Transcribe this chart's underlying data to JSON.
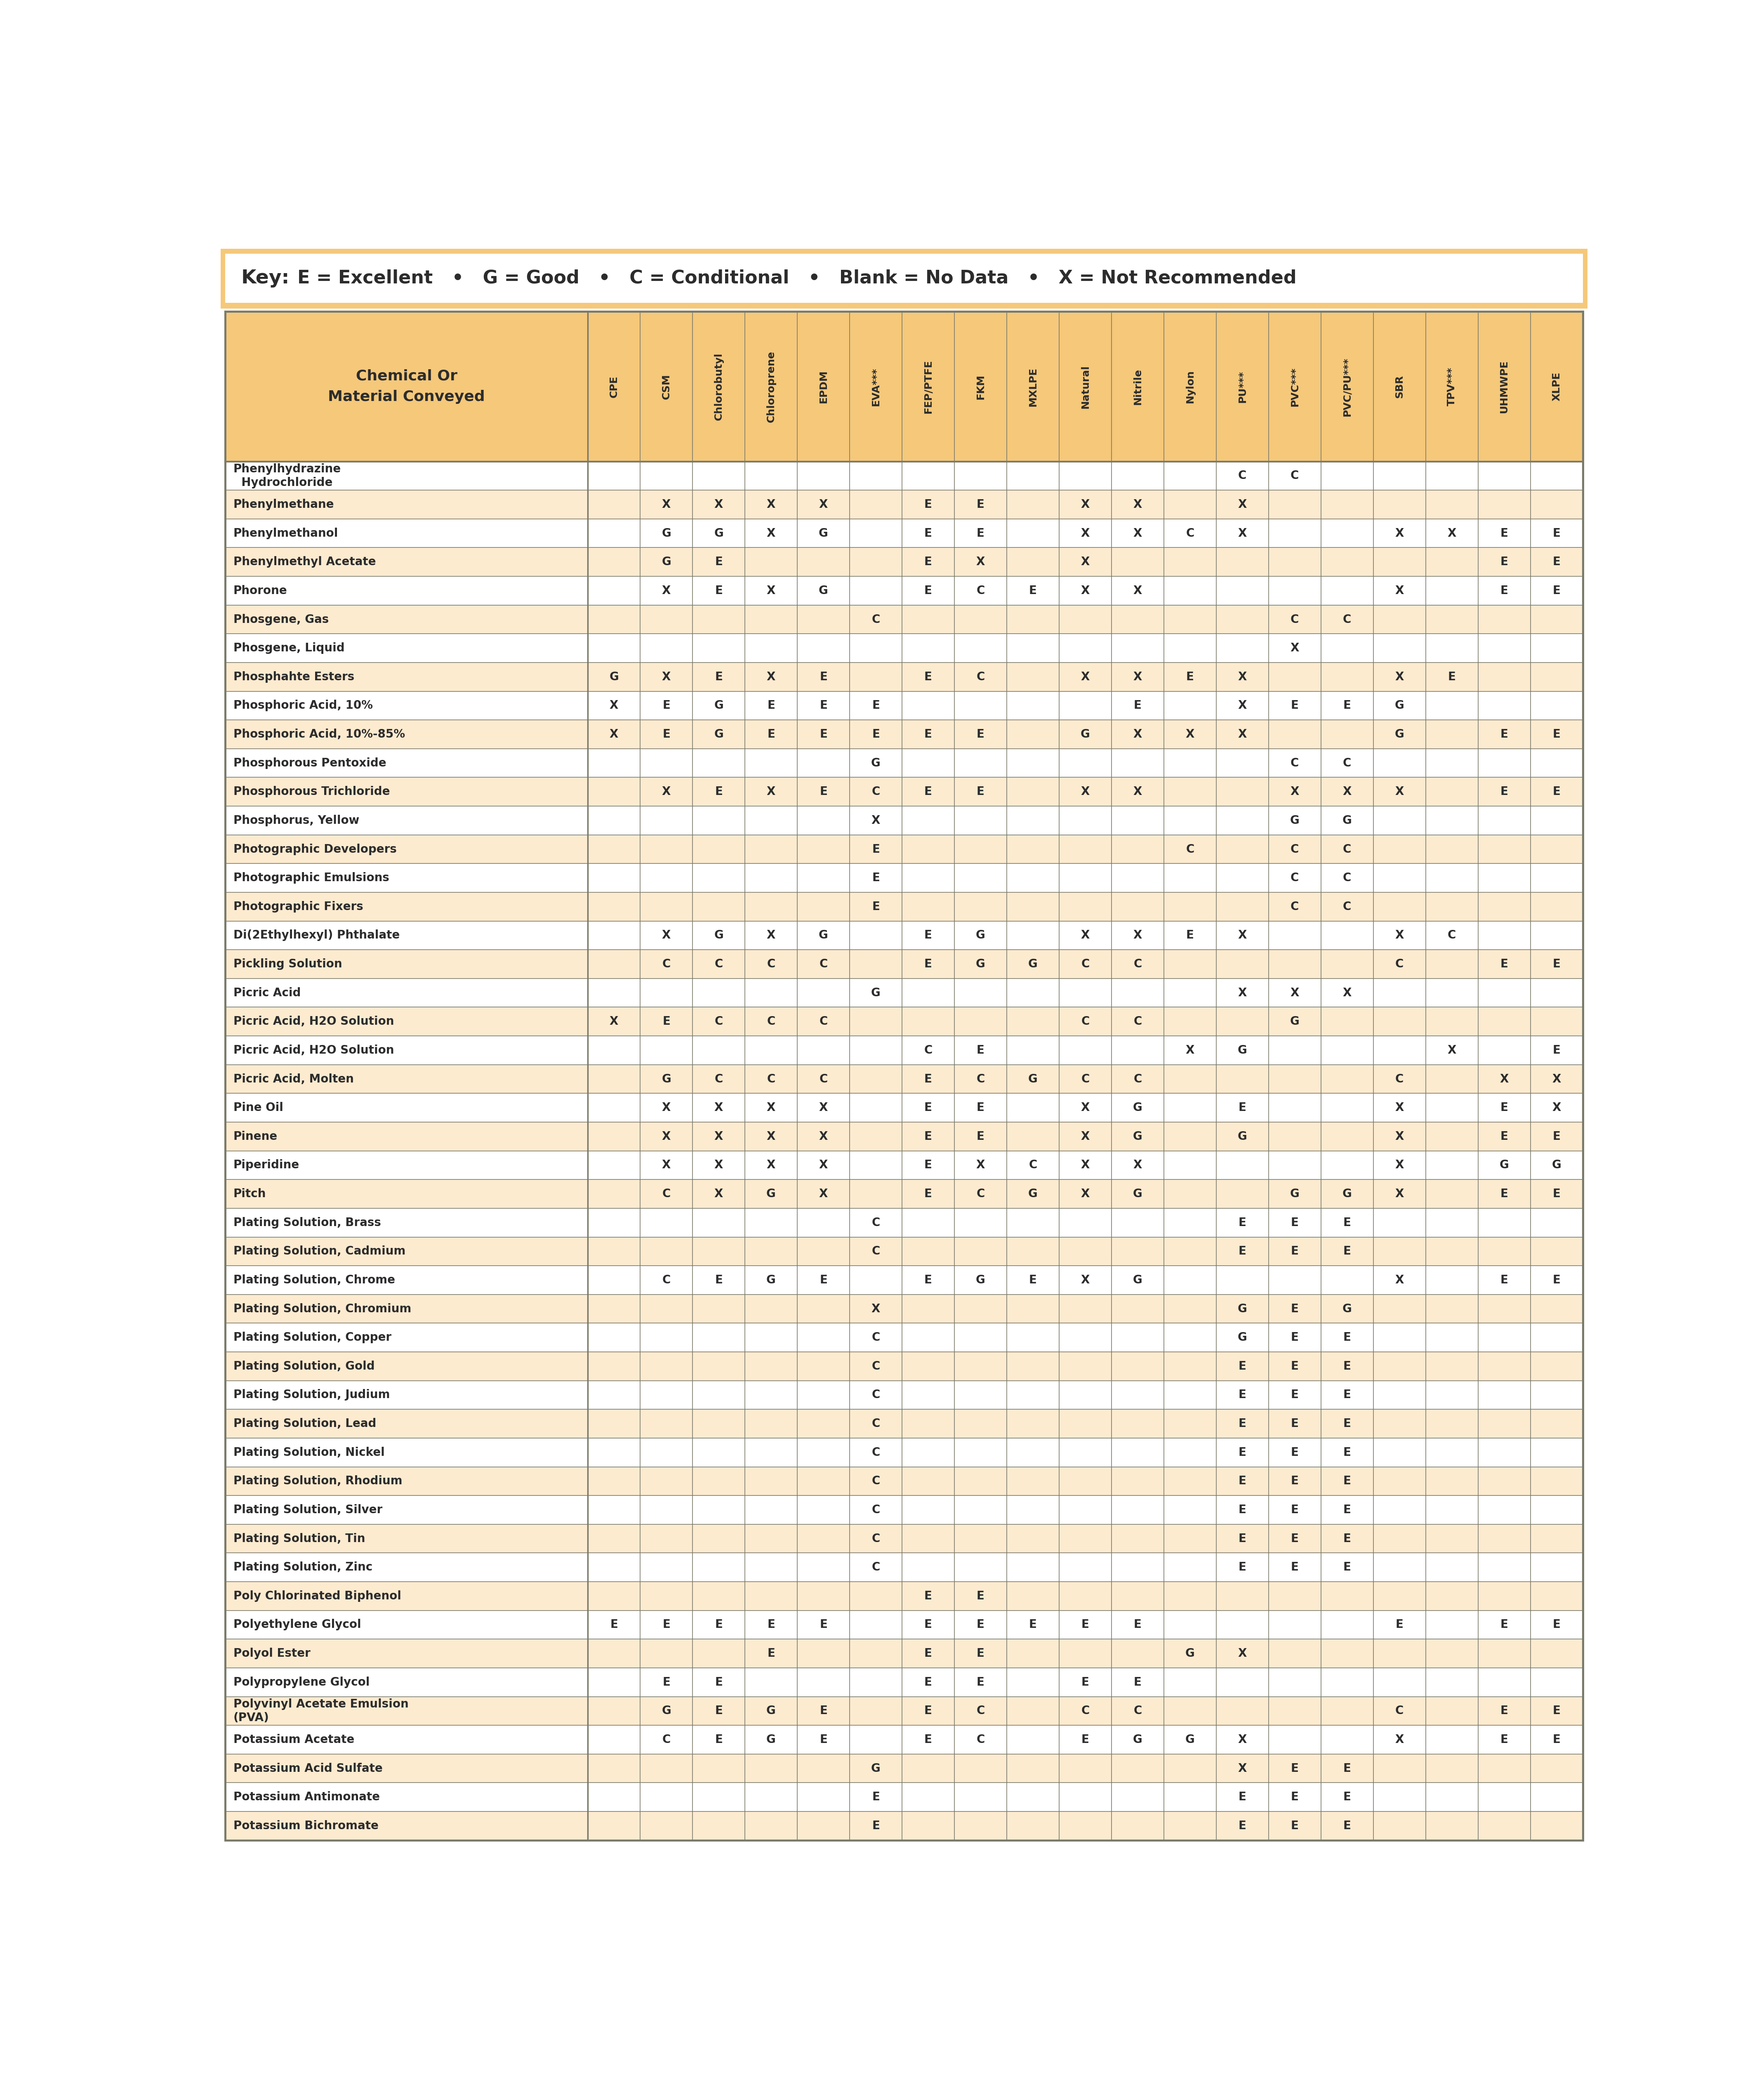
{
  "key_text_bold": "Key:",
  "key_text_rest": "  E = Excellent   •   G = Good   •   C = Conditional   •   Blank = No Data   •   X = Not Recommended",
  "header_col": "Chemical Or\nMaterial Conveyed",
  "columns": [
    "CPE",
    "CSM",
    "Chlorobutyl",
    "Chloroprene",
    "EPDM",
    "EVA***",
    "FEP/PTFE",
    "FKM",
    "MXLPE",
    "Natural",
    "Nitrile",
    "Nylon",
    "PU***",
    "PVC***",
    "PVC/PU***",
    "SBR",
    "TPV***",
    "UHMWPE",
    "XLPE"
  ],
  "rows": [
    [
      "Phenylhydrazine\n  Hydrochloride",
      "",
      "",
      "",
      "",
      "",
      "",
      "",
      "",
      "",
      "",
      "",
      "",
      "C",
      "C",
      "",
      "",
      "",
      ""
    ],
    [
      "Phenylmethane",
      "",
      "X",
      "X",
      "X",
      "X",
      "",
      "E",
      "E",
      "",
      "X",
      "X",
      "",
      "X",
      "",
      "",
      "",
      "",
      ""
    ],
    [
      "Phenylmethanol",
      "",
      "G",
      "G",
      "X",
      "G",
      "",
      "E",
      "E",
      "",
      "X",
      "X",
      "C",
      "X",
      "",
      "",
      "X",
      "X",
      "E",
      "E"
    ],
    [
      "Phenylmethyl Acetate",
      "",
      "G",
      "E",
      "",
      "",
      "",
      "E",
      "X",
      "",
      "X",
      "",
      "",
      "",
      "",
      "",
      "",
      "",
      "E",
      "E"
    ],
    [
      "Phorone",
      "",
      "X",
      "E",
      "X",
      "G",
      "",
      "E",
      "C",
      "E",
      "X",
      "X",
      "",
      "",
      "",
      "",
      "X",
      "",
      "E",
      "E"
    ],
    [
      "Phosgene, Gas",
      "",
      "",
      "",
      "",
      "",
      "C",
      "",
      "",
      "",
      "",
      "",
      "",
      "",
      "C",
      "C",
      "",
      "",
      "",
      ""
    ],
    [
      "Phosgene, Liquid",
      "",
      "",
      "",
      "",
      "",
      "",
      "",
      "",
      "",
      "",
      "",
      "",
      "",
      "X",
      "",
      "",
      "",
      "",
      ""
    ],
    [
      "Phosphahte Esters",
      "G",
      "X",
      "E",
      "X",
      "E",
      "",
      "E",
      "C",
      "",
      "X",
      "X",
      "E",
      "X",
      "",
      "",
      "X",
      "E",
      "",
      ""
    ],
    [
      "Phosphoric Acid, 10%",
      "X",
      "E",
      "G",
      "E",
      "E",
      "E",
      "",
      "",
      "",
      "",
      "E",
      "",
      "X",
      "E",
      "E",
      "G",
      "",
      "",
      ""
    ],
    [
      "Phosphoric Acid, 10%-85%",
      "X",
      "E",
      "G",
      "E",
      "E",
      "E",
      "E",
      "E",
      "",
      "G",
      "X",
      "X",
      "X",
      "",
      "",
      "G",
      "",
      "E",
      "E"
    ],
    [
      "Phosphorous Pentoxide",
      "",
      "",
      "",
      "",
      "",
      "G",
      "",
      "",
      "",
      "",
      "",
      "",
      "",
      "C",
      "C",
      "",
      "",
      "",
      ""
    ],
    [
      "Phosphorous Trichloride",
      "",
      "X",
      "E",
      "X",
      "E",
      "C",
      "E",
      "E",
      "",
      "X",
      "X",
      "",
      "",
      "X",
      "X",
      "X",
      "",
      "E",
      "E"
    ],
    [
      "Phosphorus, Yellow",
      "",
      "",
      "",
      "",
      "",
      "X",
      "",
      "",
      "",
      "",
      "",
      "",
      "",
      "G",
      "G",
      "",
      "",
      "",
      ""
    ],
    [
      "Photographic Developers",
      "",
      "",
      "",
      "",
      "",
      "E",
      "",
      "",
      "",
      "",
      "",
      "C",
      "",
      "C",
      "C",
      "",
      "",
      "",
      ""
    ],
    [
      "Photographic Emulsions",
      "",
      "",
      "",
      "",
      "",
      "E",
      "",
      "",
      "",
      "",
      "",
      "",
      "",
      "C",
      "C",
      "",
      "",
      "",
      ""
    ],
    [
      "Photographic Fixers",
      "",
      "",
      "",
      "",
      "",
      "E",
      "",
      "",
      "",
      "",
      "",
      "",
      "",
      "C",
      "C",
      "",
      "",
      "",
      ""
    ],
    [
      "Di(2Ethylhexyl) Phthalate",
      "",
      "X",
      "G",
      "X",
      "G",
      "",
      "E",
      "G",
      "",
      "X",
      "X",
      "E",
      "X",
      "",
      "",
      "X",
      "C",
      "",
      ""
    ],
    [
      "Pickling Solution",
      "",
      "C",
      "C",
      "C",
      "C",
      "",
      "E",
      "G",
      "G",
      "C",
      "C",
      "",
      "",
      "",
      "",
      "C",
      "",
      "E",
      "E"
    ],
    [
      "Picric Acid",
      "",
      "",
      "",
      "",
      "",
      "G",
      "",
      "",
      "",
      "",
      "",
      "",
      "X",
      "X",
      "X",
      "",
      "",
      "",
      ""
    ],
    [
      "Picric Acid, H2O Solution",
      "X",
      "E",
      "C",
      "C",
      "C",
      "",
      "",
      "",
      "",
      "C",
      "C",
      "",
      "",
      "G",
      "",
      "",
      "",
      "",
      ""
    ],
    [
      "Picric Acid, H2O Solution",
      "",
      "",
      "",
      "",
      "",
      "",
      "C",
      "E",
      "",
      "",
      "",
      "X",
      "G",
      "",
      "",
      "",
      "X",
      "",
      "E"
    ],
    [
      "Picric Acid, Molten",
      "",
      "G",
      "C",
      "C",
      "C",
      "",
      "E",
      "C",
      "G",
      "C",
      "C",
      "",
      "",
      "",
      "",
      "C",
      "",
      "X",
      "X"
    ],
    [
      "Pine Oil",
      "",
      "X",
      "X",
      "X",
      "X",
      "",
      "E",
      "E",
      "",
      "X",
      "G",
      "",
      "E",
      "",
      "",
      "X",
      "",
      "E",
      "X"
    ],
    [
      "Pinene",
      "",
      "X",
      "X",
      "X",
      "X",
      "",
      "E",
      "E",
      "",
      "X",
      "G",
      "",
      "G",
      "",
      "",
      "X",
      "",
      "E",
      "E"
    ],
    [
      "Piperidine",
      "",
      "X",
      "X",
      "X",
      "X",
      "",
      "E",
      "X",
      "C",
      "X",
      "X",
      "",
      "",
      "",
      "",
      "X",
      "",
      "G",
      "G"
    ],
    [
      "Pitch",
      "",
      "C",
      "X",
      "G",
      "X",
      "",
      "E",
      "C",
      "G",
      "X",
      "G",
      "",
      "",
      "G",
      "G",
      "X",
      "",
      "E",
      "E"
    ],
    [
      "Plating Solution, Brass",
      "",
      "",
      "",
      "",
      "",
      "C",
      "",
      "",
      "",
      "",
      "",
      "",
      "E",
      "E",
      "E",
      "",
      "",
      "",
      ""
    ],
    [
      "Plating Solution, Cadmium",
      "",
      "",
      "",
      "",
      "",
      "C",
      "",
      "",
      "",
      "",
      "",
      "",
      "E",
      "E",
      "E",
      "",
      "",
      "",
      ""
    ],
    [
      "Plating Solution, Chrome",
      "",
      "C",
      "E",
      "G",
      "E",
      "",
      "E",
      "G",
      "E",
      "X",
      "G",
      "",
      "",
      "",
      "",
      "X",
      "",
      "E",
      "E"
    ],
    [
      "Plating Solution, Chromium",
      "",
      "",
      "",
      "",
      "",
      "X",
      "",
      "",
      "",
      "",
      "",
      "",
      "G",
      "E",
      "G",
      "",
      "",
      "",
      ""
    ],
    [
      "Plating Solution, Copper",
      "",
      "",
      "",
      "",
      "",
      "C",
      "",
      "",
      "",
      "",
      "",
      "",
      "G",
      "E",
      "E",
      "",
      "",
      "",
      ""
    ],
    [
      "Plating Solution, Gold",
      "",
      "",
      "",
      "",
      "",
      "C",
      "",
      "",
      "",
      "",
      "",
      "",
      "E",
      "E",
      "E",
      "",
      "",
      "",
      ""
    ],
    [
      "Plating Solution, Judium",
      "",
      "",
      "",
      "",
      "",
      "C",
      "",
      "",
      "",
      "",
      "",
      "",
      "E",
      "E",
      "E",
      "",
      "",
      "",
      ""
    ],
    [
      "Plating Solution, Lead",
      "",
      "",
      "",
      "",
      "",
      "C",
      "",
      "",
      "",
      "",
      "",
      "",
      "E",
      "E",
      "E",
      "",
      "",
      "",
      ""
    ],
    [
      "Plating Solution, Nickel",
      "",
      "",
      "",
      "",
      "",
      "C",
      "",
      "",
      "",
      "",
      "",
      "",
      "E",
      "E",
      "E",
      "",
      "",
      "",
      ""
    ],
    [
      "Plating Solution, Rhodium",
      "",
      "",
      "",
      "",
      "",
      "C",
      "",
      "",
      "",
      "",
      "",
      "",
      "E",
      "E",
      "E",
      "",
      "",
      "",
      ""
    ],
    [
      "Plating Solution, Silver",
      "",
      "",
      "",
      "",
      "",
      "C",
      "",
      "",
      "",
      "",
      "",
      "",
      "E",
      "E",
      "E",
      "",
      "",
      "",
      ""
    ],
    [
      "Plating Solution, Tin",
      "",
      "",
      "",
      "",
      "",
      "C",
      "",
      "",
      "",
      "",
      "",
      "",
      "E",
      "E",
      "E",
      "",
      "",
      "",
      ""
    ],
    [
      "Plating Solution, Zinc",
      "",
      "",
      "",
      "",
      "",
      "C",
      "",
      "",
      "",
      "",
      "",
      "",
      "E",
      "E",
      "E",
      "",
      "",
      "",
      ""
    ],
    [
      "Poly Chlorinated Biphenol",
      "",
      "",
      "",
      "",
      "",
      "",
      "E",
      "E",
      "",
      "",
      "",
      "",
      "",
      "",
      "",
      "",
      "",
      "",
      ""
    ],
    [
      "Polyethylene Glycol",
      "E",
      "E",
      "E",
      "E",
      "E",
      "",
      "E",
      "E",
      "E",
      "E",
      "E",
      "",
      "",
      "",
      "",
      "E",
      "",
      "E",
      "E"
    ],
    [
      "Polyol Ester",
      "",
      "",
      "",
      "E",
      "",
      "",
      "E",
      "E",
      "",
      "",
      "",
      "G",
      "X",
      "",
      "",
      "",
      "",
      "",
      ""
    ],
    [
      "Polypropylene Glycol",
      "",
      "E",
      "E",
      "",
      "",
      "",
      "E",
      "E",
      "",
      "E",
      "E",
      "",
      "",
      "",
      "",
      "",
      "",
      "",
      ""
    ],
    [
      "Polyvinyl Acetate Emulsion\n(PVA)",
      "",
      "G",
      "E",
      "G",
      "E",
      "",
      "E",
      "C",
      "",
      "C",
      "C",
      "",
      "",
      "",
      "",
      "C",
      "",
      "E",
      "E"
    ],
    [
      "Potassium Acetate",
      "",
      "C",
      "E",
      "G",
      "E",
      "",
      "E",
      "C",
      "",
      "E",
      "G",
      "G",
      "X",
      "",
      "",
      "X",
      "",
      "E",
      "E"
    ],
    [
      "Potassium Acid Sulfate",
      "",
      "",
      "",
      "",
      "",
      "G",
      "",
      "",
      "",
      "",
      "",
      "",
      "X",
      "E",
      "E",
      "",
      "",
      "",
      ""
    ],
    [
      "Potassium Antimonate",
      "",
      "",
      "",
      "",
      "",
      "E",
      "",
      "",
      "",
      "",
      "",
      "",
      "E",
      "E",
      "E",
      "",
      "",
      "",
      ""
    ],
    [
      "Potassium Bichromate",
      "",
      "",
      "",
      "",
      "",
      "E",
      "",
      "",
      "",
      "",
      "",
      "",
      "E",
      "E",
      "E",
      "",
      "",
      "",
      ""
    ]
  ],
  "bg_color_header": "#F5C87A",
  "bg_color_odd": "#FFFFFF",
  "bg_color_even": "#FDEBD0",
  "text_color": "#2C2C2C",
  "border_color": "#7A7A6A",
  "key_border_color": "#F5C87A",
  "outer_border_color": "#F5C87A"
}
